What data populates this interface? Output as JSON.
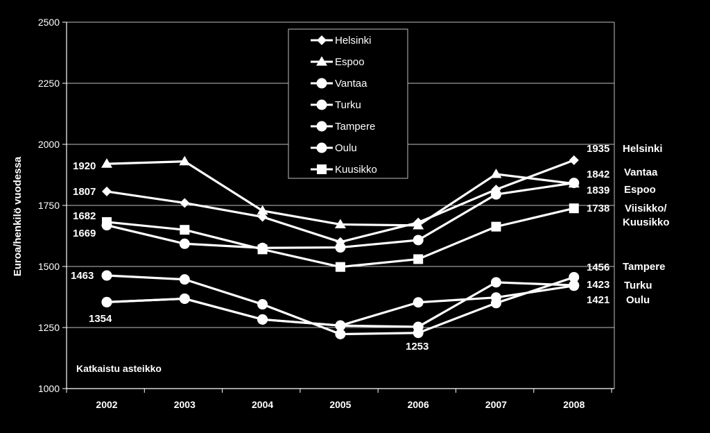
{
  "chart_data": {
    "type": "line",
    "ylabel": "Euroa/henkilö vuodessa",
    "xlabel": "",
    "title": "",
    "ylim": [
      1000,
      2500
    ],
    "yticks": [
      1000,
      1250,
      1500,
      1750,
      2000,
      2250,
      2500
    ],
    "categories": [
      "2002",
      "2003",
      "2004",
      "2005",
      "2006",
      "2007",
      "2008"
    ],
    "grid": "horizontal",
    "legend_position": "top-center",
    "series": [
      {
        "name": "Helsinki",
        "marker": "diamond",
        "values": [
          1807,
          1760,
          1703,
          1600,
          1680,
          1815,
          1935
        ]
      },
      {
        "name": "Espoo",
        "marker": "triangle",
        "values": [
          1920,
          1930,
          1728,
          1672,
          1668,
          1878,
          1839
        ]
      },
      {
        "name": "Vantaa",
        "marker": "circle",
        "values": [
          1669,
          1593,
          1576,
          1578,
          1608,
          1795,
          1842
        ]
      },
      {
        "name": "Turku",
        "marker": "circle",
        "values": [
          1354,
          1368,
          1283,
          1258,
          1253,
          1435,
          1423
        ]
      },
      {
        "name": "Tampere",
        "marker": "circle",
        "values": [
          1463,
          1447,
          1345,
          1223,
          1228,
          1350,
          1456
        ]
      },
      {
        "name": "Oulu",
        "marker": "circle",
        "values": [
          1354,
          1368,
          1283,
          1258,
          1353,
          1373,
          1421
        ]
      },
      {
        "name": "Kuusikko",
        "marker": "square",
        "values": [
          1682,
          1650,
          1570,
          1498,
          1530,
          1663,
          1738
        ]
      }
    ],
    "data_labels": [
      {
        "text": "1920"
      },
      {
        "text": "1807"
      },
      {
        "text": "1682"
      },
      {
        "text": "1669"
      },
      {
        "text": "1463"
      },
      {
        "text": "1354"
      },
      {
        "text": "1253"
      },
      {
        "text": "1935"
      },
      {
        "text": "1842"
      },
      {
        "text": "1839"
      },
      {
        "text": "1738"
      },
      {
        "text": "1456"
      },
      {
        "text": "1423"
      },
      {
        "text": "1421"
      }
    ],
    "right_labels": [
      {
        "text": "Helsinki"
      },
      {
        "text": "Vantaa"
      },
      {
        "text": "Espoo"
      },
      {
        "text": "Viisikko/"
      },
      {
        "text": "Kuusikko"
      },
      {
        "text": "Tampere"
      },
      {
        "text": "Turku"
      },
      {
        "text": "Oulu"
      }
    ],
    "annotation": "Katkaistu asteikko"
  }
}
